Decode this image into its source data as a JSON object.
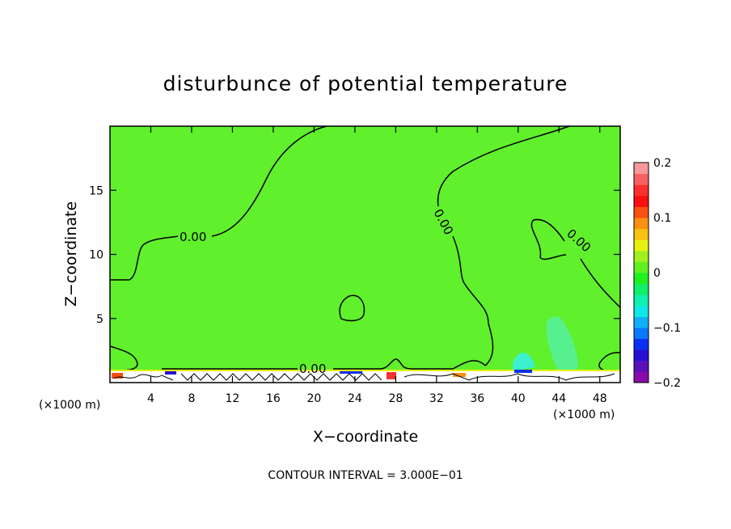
{
  "chart_data": {
    "type": "heatmap",
    "title": "disturbunce of potential temperature",
    "xlabel": "X−coordinate",
    "ylabel": "Z−coordinate",
    "x_unit": "(×1000 m)",
    "y_unit": "(×1000 m)",
    "xlim": [
      0,
      50
    ],
    "ylim": [
      0,
      20
    ],
    "x_ticks": [
      "4",
      "8",
      "12",
      "16",
      "20",
      "24",
      "28",
      "32",
      "36",
      "40",
      "44",
      "48"
    ],
    "y_ticks": [
      "5",
      "10",
      "15"
    ],
    "field_value": 0,
    "contour_labels": [
      "0.00",
      "0.00",
      "0.00",
      "0.00"
    ],
    "contour_interval_text": "CONTOUR INTERVAL = 3.000E−01",
    "colorbar": {
      "range": [
        -0.2,
        0.2
      ],
      "tick_labels": [
        "0.2",
        "0.1",
        "0",
        "−0.1",
        "−0.2"
      ],
      "colors": [
        "#8a0aa8",
        "#5a10b8",
        "#2a10d0",
        "#0a30f0",
        "#0a78f8",
        "#10b0f8",
        "#10e8e8",
        "#10f0b0",
        "#10f068",
        "#20f020",
        "#60f020",
        "#a0f020",
        "#e8f010",
        "#f8c010",
        "#f89010",
        "#f85010",
        "#f81010",
        "#f83030",
        "#f86060",
        "#f89898"
      ]
    },
    "colors": {
      "field": "#60f02c",
      "contour": "#000000",
      "cyan_feature": "#56f0a0"
    }
  }
}
